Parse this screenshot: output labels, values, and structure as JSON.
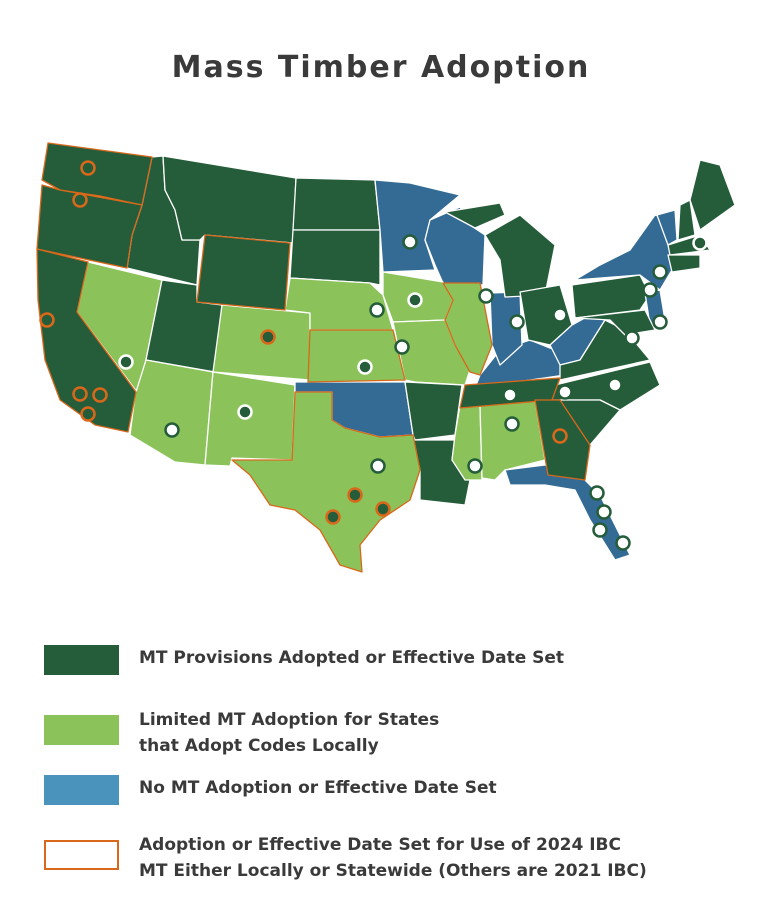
{
  "title": "Mass Timber Adoption",
  "legend": [
    {
      "label": "MT Provisions Adopted or Effective Date Set",
      "color": "#255d3a"
    },
    {
      "label": "Limited MT Adoption for States",
      "label2": "that Adopt Codes Locally",
      "color": "#8bc35a"
    },
    {
      "label": "No MT Adoption or Effective Date Set",
      "color": "#4a93bd"
    },
    {
      "label": "Adoption or Effective Date Set for Use of 2024 IBC",
      "label2": "MT Either Locally or Statewide (Others are 2021 IBC)",
      "color": "#d9681a"
    }
  ]
}
